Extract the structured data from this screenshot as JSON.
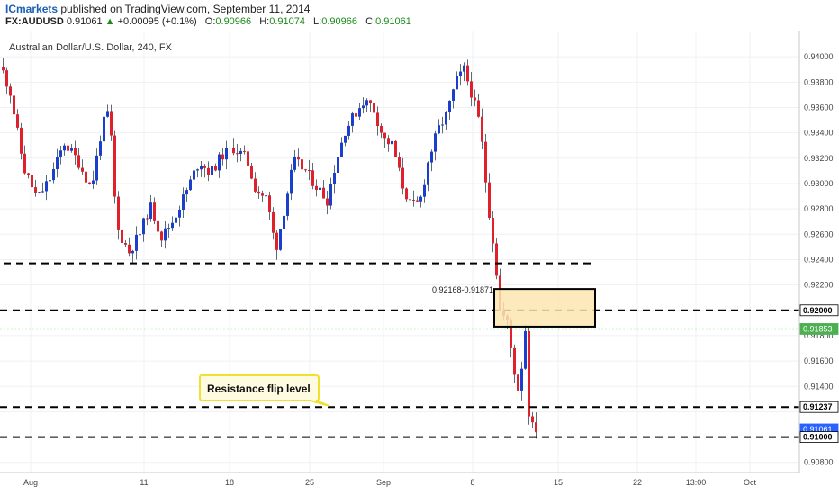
{
  "header": {
    "brand": "ICmarkets",
    "published": "published on TradingView.com, September 11, 2014",
    "symbol": "FX:AUDUSD",
    "last": "0.91061",
    "change_arrow": "▲",
    "change": "+0.00095 (+0.1%)",
    "o_label": "O:",
    "o_value": "0.90966",
    "h_label": "H:",
    "h_value": "0.91074",
    "l_label": "L:",
    "l_value": "0.90966",
    "c_label": "C:",
    "c_value": "0.91061"
  },
  "chart_data": {
    "type": "candlestick",
    "title": "Australian Dollar/U.S. Dollar, 240, FX",
    "ylim": [
      0.9072,
      0.942
    ],
    "x_ticks": [
      "Aug",
      "11",
      "18",
      "25",
      "Sep",
      "8",
      "15",
      "22",
      "13:00",
      "Oct"
    ],
    "y_ticks": [
      "0.94000",
      "0.93800",
      "0.93600",
      "0.93400",
      "0.93200",
      "0.93000",
      "0.92800",
      "0.92600",
      "0.92400",
      "0.92200",
      "0.91800",
      "0.91600",
      "0.91400",
      "0.90800"
    ],
    "price_labels": [
      {
        "value": "0.92000",
        "price": 0.92,
        "bg": "#ffffff",
        "fg": "#000000"
      },
      {
        "value": "0.91853",
        "price": 0.91853,
        "bg": "#4caf50",
        "fg": "#ffffff"
      },
      {
        "value": "0.91237",
        "price": 0.91237,
        "bg": "#ffffff",
        "fg": "#000000"
      },
      {
        "value": "0.91061",
        "price": 0.91061,
        "bg": "#2962ff",
        "fg": "#ffffff"
      },
      {
        "value": "0.91000",
        "price": 0.91,
        "bg": "#ffffff",
        "fg": "#000000"
      }
    ],
    "levels": [
      {
        "price": 0.9237,
        "style": "dashed",
        "color": "#000000"
      },
      {
        "price": 0.92,
        "style": "dashed",
        "color": "#000000"
      },
      {
        "price": 0.91853,
        "style": "dotted",
        "color": "#39d839"
      },
      {
        "price": 0.91237,
        "style": "dashed",
        "color": "#000000"
      },
      {
        "price": 0.91,
        "style": "dashed",
        "color": "#000000"
      }
    ],
    "zone": {
      "label": "0.92168-0.91871",
      "high": 0.92168,
      "low": 0.91871,
      "fill": "#fbe6b0",
      "border": "#000000"
    },
    "annotation": {
      "text": "Resistance flip level",
      "fill": "#fffbe0",
      "border": "#f0e030"
    },
    "colors": {
      "up": "#1a3fcf",
      "down": "#e0202a",
      "grid": "#eef1f5"
    },
    "series_anchors": [
      [
        0,
        0.9392
      ],
      [
        10,
        0.9372
      ],
      [
        25,
        0.9312
      ],
      [
        40,
        0.9288
      ],
      [
        55,
        0.9305
      ],
      [
        70,
        0.9332
      ],
      [
        85,
        0.9318
      ],
      [
        100,
        0.9296
      ],
      [
        112,
        0.9345
      ],
      [
        120,
        0.9358
      ],
      [
        128,
        0.9265
      ],
      [
        142,
        0.9246
      ],
      [
        155,
        0.9262
      ],
      [
        165,
        0.9283
      ],
      [
        178,
        0.9258
      ],
      [
        190,
        0.927
      ],
      [
        205,
        0.9293
      ],
      [
        220,
        0.9318
      ],
      [
        232,
        0.9308
      ],
      [
        245,
        0.9322
      ],
      [
        258,
        0.9328
      ],
      [
        272,
        0.932
      ],
      [
        283,
        0.9295
      ],
      [
        295,
        0.9288
      ],
      [
        305,
        0.9248
      ],
      [
        315,
        0.9282
      ],
      [
        325,
        0.9318
      ],
      [
        338,
        0.931
      ],
      [
        350,
        0.9298
      ],
      [
        362,
        0.9287
      ],
      [
        372,
        0.9318
      ],
      [
        382,
        0.9342
      ],
      [
        393,
        0.9355
      ],
      [
        402,
        0.9365
      ],
      [
        412,
        0.9362
      ],
      [
        425,
        0.9335
      ],
      [
        435,
        0.933
      ],
      [
        445,
        0.93
      ],
      [
        455,
        0.9282
      ],
      [
        465,
        0.9285
      ],
      [
        475,
        0.932
      ],
      [
        485,
        0.9342
      ],
      [
        495,
        0.9355
      ],
      [
        505,
        0.938
      ],
      [
        514,
        0.939
      ],
      [
        522,
        0.9372
      ],
      [
        532,
        0.9345
      ],
      [
        540,
        0.9288
      ],
      [
        548,
        0.9245
      ],
      [
        554,
        0.92
      ],
      [
        562,
        0.919
      ],
      [
        569,
        0.9155
      ],
      [
        575,
        0.9135
      ],
      [
        582,
        0.9185
      ],
      [
        586,
        0.912
      ],
      [
        590,
        0.9108
      ],
      [
        596,
        0.9106
      ]
    ]
  }
}
